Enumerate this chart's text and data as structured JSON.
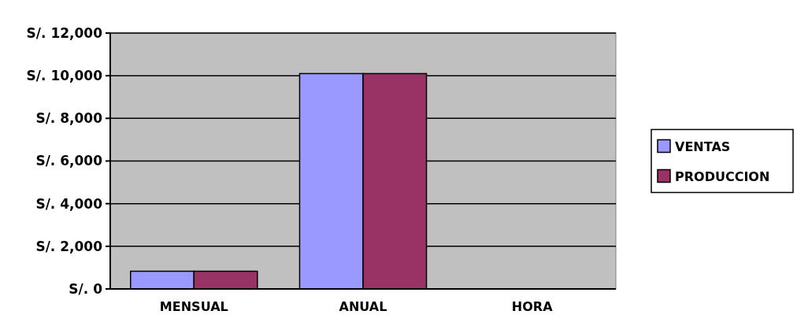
{
  "chart_data": {
    "type": "bar",
    "categories": [
      "MENSUAL",
      "ANUAL",
      "HORA"
    ],
    "series": [
      {
        "name": "VENTAS",
        "color": "#9999ff",
        "values": [
          830,
          10100,
          0
        ]
      },
      {
        "name": "PRODUCCION",
        "color": "#993366",
        "values": [
          830,
          10100,
          0
        ]
      }
    ],
    "ylim": [
      0,
      12000
    ],
    "yticks": [
      {
        "value": 0,
        "label": "S/. 0"
      },
      {
        "value": 2000,
        "label": "S/. 2,000"
      },
      {
        "value": 4000,
        "label": "S/. 4,000"
      },
      {
        "value": 6000,
        "label": "S/. 6,000"
      },
      {
        "value": 8000,
        "label": "S/. 8,000"
      },
      {
        "value": 10000,
        "label": "S/. 10,000"
      },
      {
        "value": 12000,
        "label": "S/. 12,000"
      }
    ],
    "grid": "y",
    "legend": "right"
  }
}
